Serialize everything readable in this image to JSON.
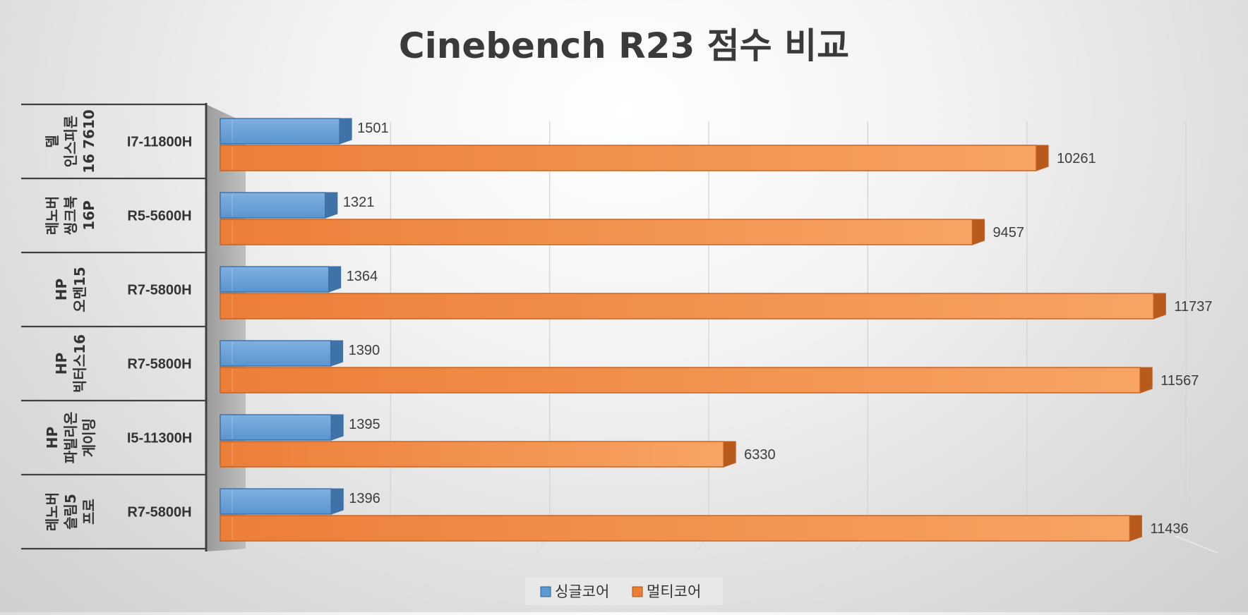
{
  "chart_data": {
    "type": "bar",
    "orientation": "horizontal",
    "title": "Cinebench R23 점수 비교",
    "categories": [
      {
        "group": [
          "델",
          "인스피론",
          "16 7610"
        ],
        "cpu": "I7-11800H"
      },
      {
        "group": [
          "레노버",
          "씽크북",
          "16P"
        ],
        "cpu": "R5-5600H"
      },
      {
        "group": [
          "HP",
          "오멘15"
        ],
        "cpu": "R7-5800H"
      },
      {
        "group": [
          "HP",
          "빅터스16"
        ],
        "cpu": "R7-5800H"
      },
      {
        "group": [
          "HP",
          "파빌리온",
          "게이밍"
        ],
        "cpu": "I5-11300H"
      },
      {
        "group": [
          "레노버",
          "슬림5",
          "프로"
        ],
        "cpu": "R7-5800H"
      }
    ],
    "series": [
      {
        "name": "싱글코어",
        "color": "#5b9bd5",
        "values": [
          1501,
          1321,
          1364,
          1390,
          1395,
          1396
        ]
      },
      {
        "name": "멀티코어",
        "color": "#ed7d31",
        "values": [
          10261,
          9457,
          11737,
          11567,
          6330,
          11436
        ]
      }
    ],
    "xlim": [
      0,
      12000
    ],
    "x_gridlines": true,
    "x_tick_labels_visible": false,
    "legend_position": "bottom"
  }
}
